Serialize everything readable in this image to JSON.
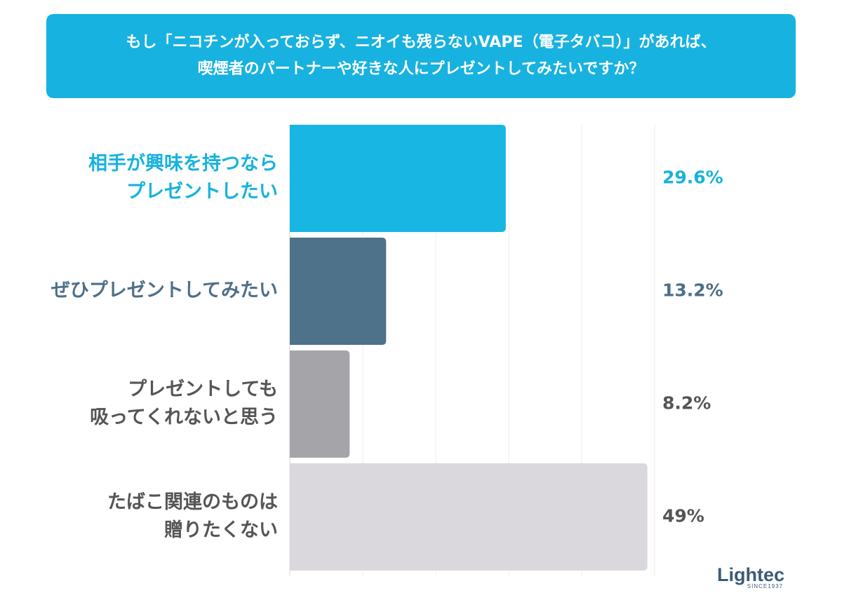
{
  "title": {
    "line1": "もし「ニコチンが入っておらず、ニオイも残らないVAPE（電子タバコ）」があれば、",
    "line2": "喫煙者のパートナーや好きな人にプレゼントしてみたいですか？"
  },
  "chart_data": {
    "type": "bar",
    "orientation": "horizontal",
    "grid": true,
    "xlim": [
      0,
      50
    ],
    "categories": [
      [
        "相手が興味を持つなら",
        "プレゼントしたい"
      ],
      [
        "ぜひプレゼントしてみたい"
      ],
      [
        "プレゼントしても",
        "吸ってくれないと思う"
      ],
      [
        "たばこ関連のものは",
        "贈りたくない"
      ]
    ],
    "values": [
      29.6,
      13.2,
      8.2,
      49
    ],
    "value_labels": [
      "29.6%",
      "13.2%",
      "8.2%",
      "49%"
    ],
    "bar_colors": [
      "#17b6e3",
      "#4d7289",
      "#a5a4a8",
      "#dad8dc"
    ],
    "label_colors": [
      "#17b2df",
      "#4d6f88",
      "#555558",
      "#555558"
    ]
  },
  "logo": {
    "word": "Lightec",
    "since": "SINCE1937"
  }
}
